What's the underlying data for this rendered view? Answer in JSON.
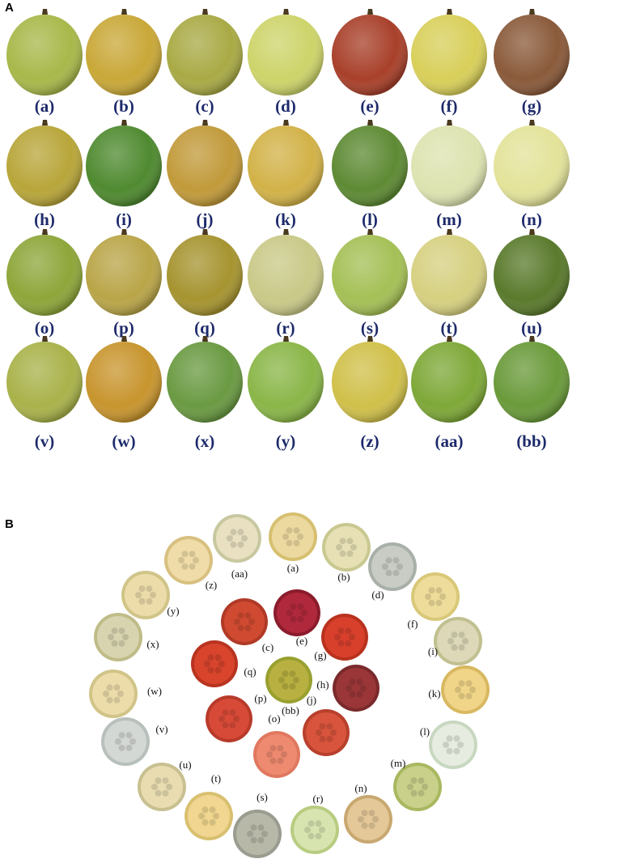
{
  "panel_a": {
    "label": "A",
    "fruits": [
      "(a)",
      "(b)",
      "(c)",
      "(d)",
      "(e)",
      "(f)",
      "(g)",
      "(h)",
      "(i)",
      "(j)",
      "(k)",
      "(l)",
      "(m)",
      "(n)",
      "(o)",
      "(p)",
      "(q)",
      "(r)",
      "(s)",
      "(t)",
      "(u)",
      "(v)",
      "(w)",
      "(x)",
      "(y)",
      "(z)",
      "(aa)",
      "(bb)"
    ]
  },
  "panel_b": {
    "label": "B",
    "slices": [
      "(a)",
      "(b)",
      "(d)",
      "(f)",
      "(i)",
      "(k)",
      "(l)",
      "(m)",
      "(n)",
      "(r)",
      "(s)",
      "(t)",
      "(u)",
      "(v)",
      "(w)",
      "(x)",
      "(y)",
      "(z)",
      "(aa)",
      "(e)",
      "(c)",
      "(g)",
      "(q)",
      "(bb)",
      "(h)",
      "(j)",
      "(p)",
      "(o)"
    ]
  }
}
